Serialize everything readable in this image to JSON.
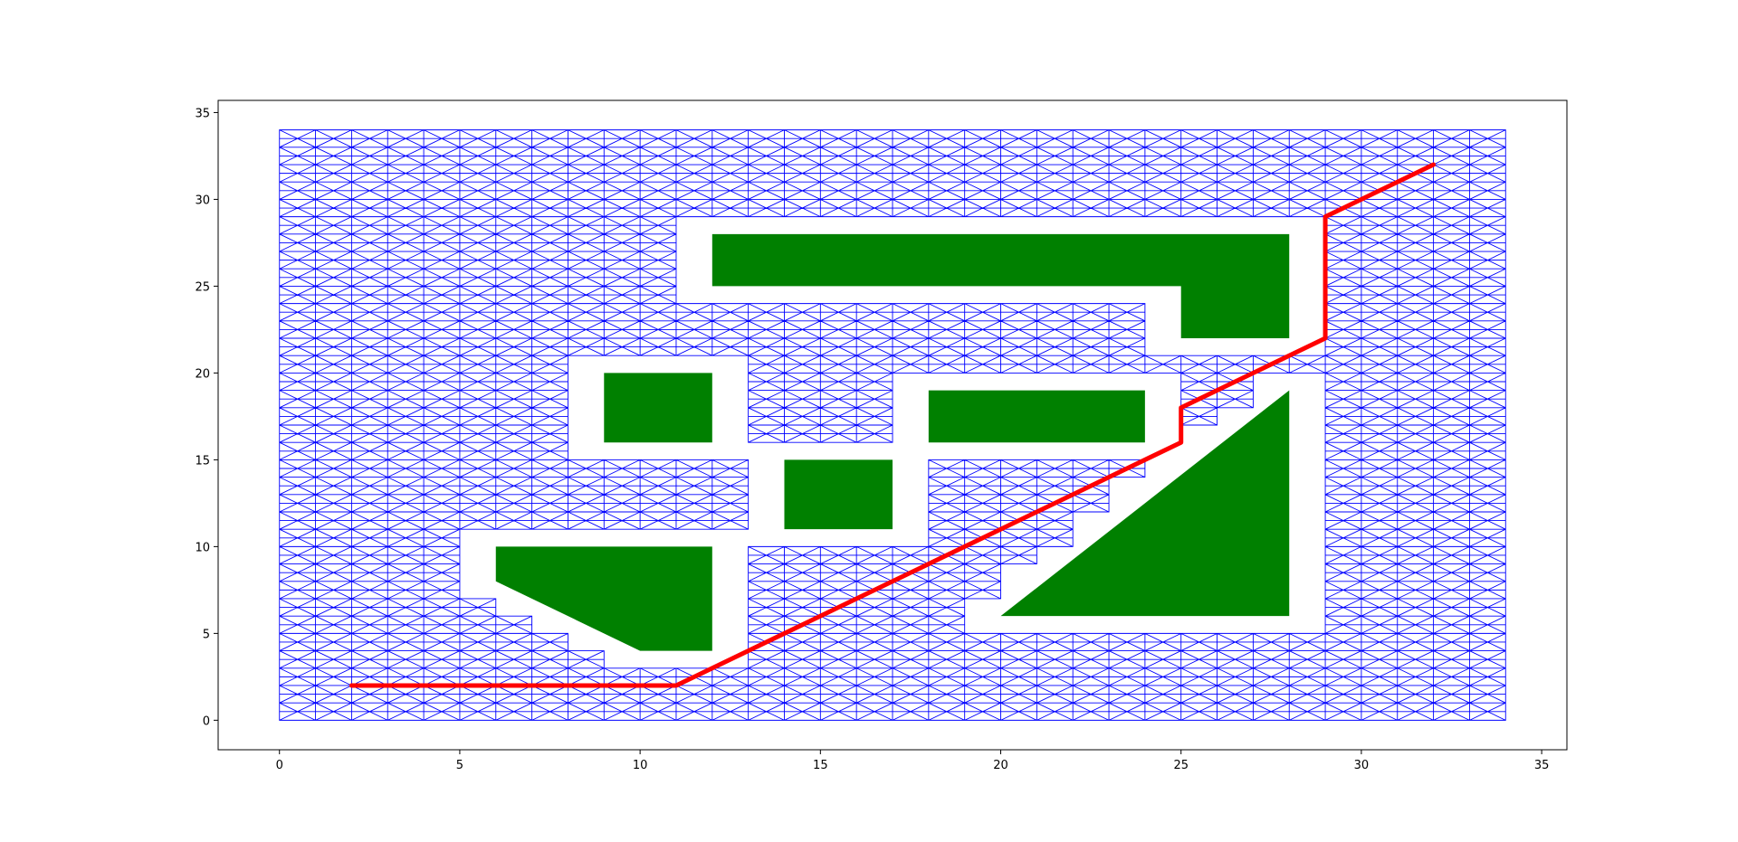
{
  "chart_data": {
    "type": "scatter",
    "title": "",
    "xlabel": "",
    "ylabel": "",
    "xlim": [
      -1.7,
      35.7
    ],
    "ylim": [
      -1.7,
      35.7
    ],
    "xticks": [
      0,
      5,
      10,
      15,
      20,
      25,
      30,
      35
    ],
    "yticks": [
      0,
      5,
      10,
      15,
      20,
      25,
      30,
      35
    ],
    "grid": false,
    "mesh": {
      "description": "triangulated navigation mesh over free space",
      "color": "#0000ff",
      "xrange": [
        0,
        34
      ],
      "yrange": [
        0,
        34
      ],
      "cell": 1,
      "clearance": 1
    },
    "obstacles": {
      "color": "#008000",
      "polygons": [
        [
          [
            12,
            25
          ],
          [
            25,
            25
          ],
          [
            25,
            22
          ],
          [
            28,
            22
          ],
          [
            28,
            28
          ],
          [
            12,
            28
          ]
        ],
        [
          [
            9,
            16
          ],
          [
            12,
            16
          ],
          [
            12,
            20
          ],
          [
            9,
            20
          ]
        ],
        [
          [
            18,
            16
          ],
          [
            24,
            16
          ],
          [
            24,
            19
          ],
          [
            18,
            19
          ]
        ],
        [
          [
            14,
            11
          ],
          [
            17,
            11
          ],
          [
            17,
            15
          ],
          [
            14,
            15
          ]
        ],
        [
          [
            6,
            10
          ],
          [
            12,
            10
          ],
          [
            12,
            4
          ],
          [
            10,
            4
          ],
          [
            6,
            8
          ]
        ],
        [
          [
            20,
            6
          ],
          [
            28,
            6
          ],
          [
            28,
            19
          ]
        ]
      ]
    },
    "path": {
      "color": "#ff0000",
      "points": [
        [
          2,
          2
        ],
        [
          11,
          2
        ],
        [
          25,
          16
        ],
        [
          25,
          18
        ],
        [
          29,
          22
        ],
        [
          29,
          29
        ],
        [
          32,
          32
        ]
      ]
    }
  }
}
